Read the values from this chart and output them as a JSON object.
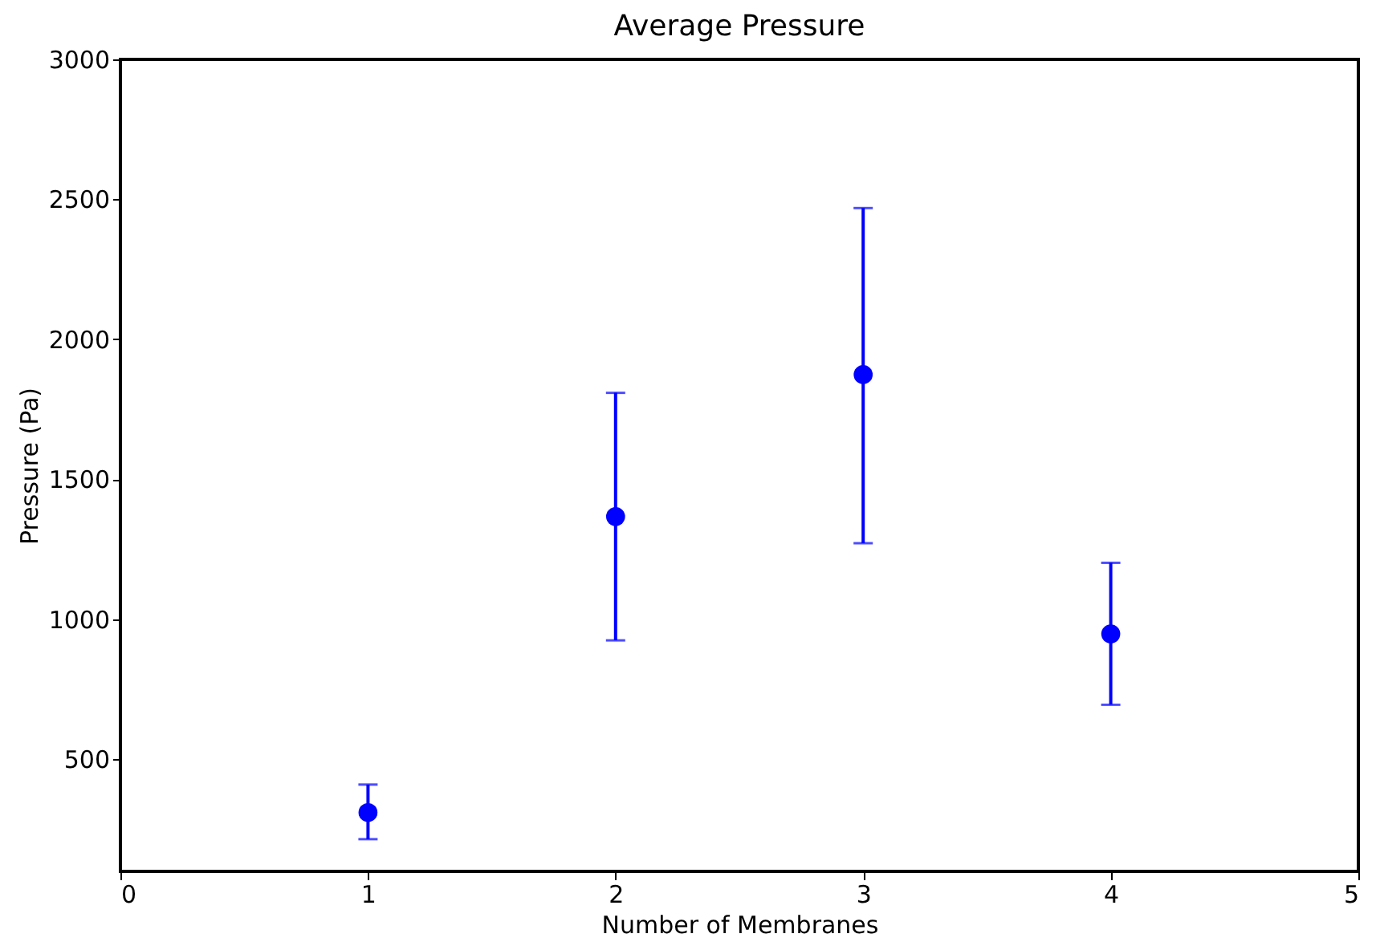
{
  "chart_data": {
    "type": "scatter",
    "title": "Average Pressure",
    "xlabel": "Number of Membranes",
    "ylabel": "Pressure (Pa)",
    "x": [
      1,
      2,
      3,
      4
    ],
    "series": [
      {
        "color": "#0000ff",
        "values": [
          310,
          1367,
          1874,
          948
        ],
        "errors": [
          [
            215,
            410
          ],
          [
            925,
            1809
          ],
          [
            1272,
            2469
          ],
          [
            695,
            1202
          ]
        ]
      }
    ],
    "xlim": [
      0,
      5
    ],
    "xticks": [
      0,
      1,
      2,
      3,
      4,
      5
    ],
    "ylim": [
      100,
      3000
    ],
    "yticks": [
      500,
      1000,
      1500,
      2000,
      2500,
      3000
    ],
    "marker": "circle",
    "grid": false
  }
}
